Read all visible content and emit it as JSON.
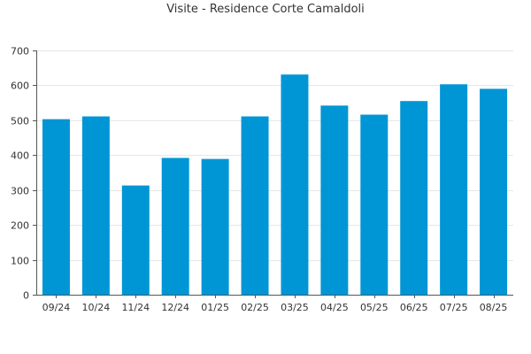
{
  "chart_data": {
    "type": "bar",
    "title": "Visite - Residence Corte Camaldoli",
    "xlabel": "",
    "ylabel": "",
    "categories": [
      "09/24",
      "10/24",
      "11/24",
      "12/24",
      "01/25",
      "02/25",
      "03/25",
      "04/25",
      "05/25",
      "06/25",
      "07/25",
      "08/25"
    ],
    "values": [
      503,
      511,
      313,
      392,
      389,
      511,
      631,
      542,
      516,
      555,
      603,
      590
    ],
    "ylim": [
      0,
      700
    ],
    "yticks": [
      0,
      100,
      200,
      300,
      400,
      500,
      600,
      700
    ],
    "grid": true,
    "legend": "none",
    "colors": {
      "bar": "#0096d6",
      "grid": "#e6e6e6",
      "axis": "#555555",
      "text": "#333333"
    }
  }
}
